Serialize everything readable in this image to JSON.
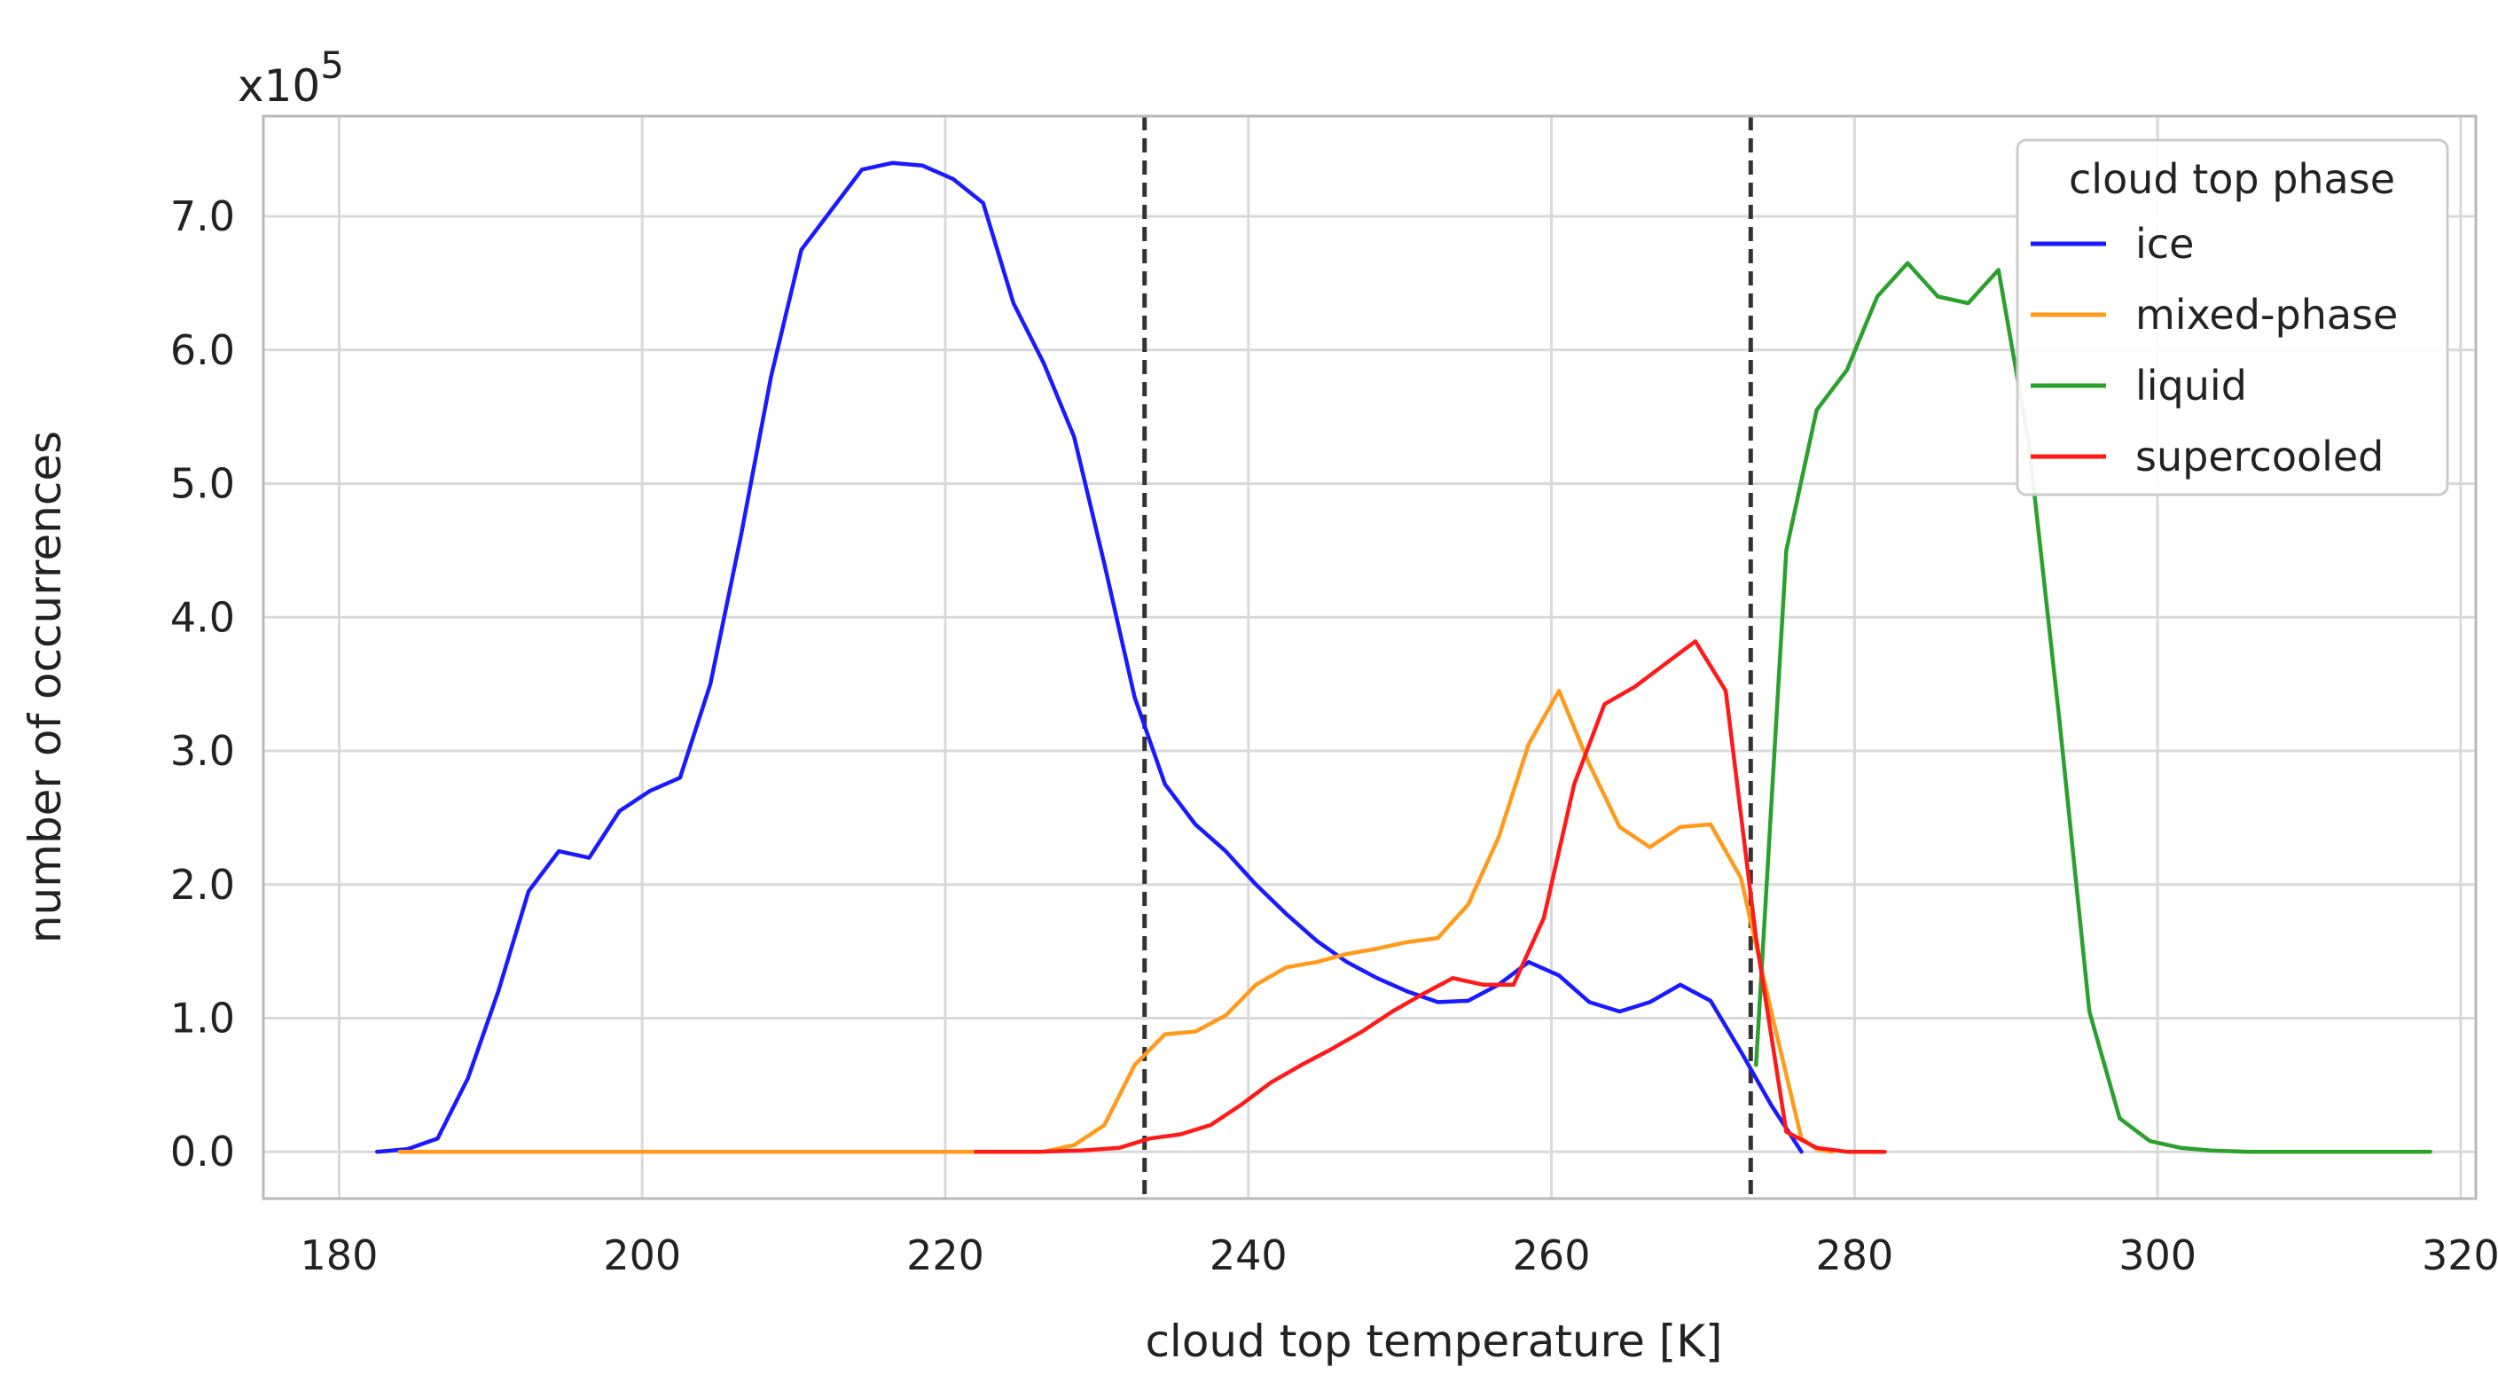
{
  "chart_data": {
    "type": "line",
    "xlabel": "cloud top temperature [K]",
    "ylabel": "number of occurrences",
    "y_multiplier_base": "x10",
    "y_multiplier_exp": "5",
    "xlim": [
      175,
      321
    ],
    "ylim": [
      -0.35,
      7.75
    ],
    "x_ticks": [
      180,
      200,
      220,
      240,
      260,
      280,
      300,
      320
    ],
    "y_ticks": [
      0.0,
      1.0,
      2.0,
      3.0,
      4.0,
      5.0,
      6.0,
      7.0
    ],
    "y_tick_labels": [
      "0.0",
      "1.0",
      "2.0",
      "3.0",
      "4.0",
      "5.0",
      "6.0",
      "7.0"
    ],
    "grid": true,
    "legend_position": "top-right",
    "legend_title": "cloud top phase",
    "vlines": [
      233.15,
      273.15
    ],
    "series": [
      {
        "name": "ice",
        "color": "#1a1aff",
        "x": [
          182.5,
          184.5,
          186.5,
          188.5,
          190.5,
          192.5,
          194.5,
          196.5,
          198.5,
          200.5,
          202.5,
          204.5,
          206.5,
          208.5,
          210.5,
          212.5,
          214.5,
          216.5,
          218.5,
          220.5,
          222.5,
          224.5,
          226.5,
          228.5,
          230.5,
          232.5,
          234.5,
          236.5,
          238.5,
          240.5,
          242.5,
          244.5,
          246.5,
          248.5,
          250.5,
          252.5,
          254.5,
          256.5,
          258.5,
          260.5,
          262.5,
          264.5,
          266.5,
          268.5,
          270.5,
          272.5,
          274.5,
          276.5
        ],
        "y": [
          0.0,
          0.02,
          0.1,
          0.55,
          1.2,
          1.95,
          2.25,
          2.2,
          2.55,
          2.7,
          2.8,
          3.5,
          4.6,
          5.8,
          6.75,
          7.05,
          7.35,
          7.4,
          7.38,
          7.28,
          7.1,
          6.35,
          5.9,
          5.35,
          4.4,
          3.4,
          2.75,
          2.45,
          2.25,
          2.0,
          1.78,
          1.58,
          1.42,
          1.3,
          1.2,
          1.12,
          1.13,
          1.25,
          1.42,
          1.32,
          1.12,
          1.05,
          1.12,
          1.25,
          1.13,
          0.75,
          0.35,
          0.0
        ]
      },
      {
        "name": "mixed-phase",
        "color": "#ff9a1a",
        "x": [
          184,
          200,
          210,
          220,
          224,
          226.5,
          228.5,
          230.5,
          232.5,
          234.5,
          236.5,
          238.5,
          240.5,
          242.5,
          244.5,
          246.5,
          248.5,
          250.5,
          252.5,
          254.5,
          256.5,
          258.5,
          260.5,
          262.5,
          264.5,
          266.5,
          268.5,
          270.5,
          272.5,
          274.5,
          276.5,
          277.5,
          278.5
        ],
        "y": [
          0.0,
          0.0,
          0.0,
          0.0,
          0.0,
          0.0,
          0.05,
          0.2,
          0.65,
          0.88,
          0.9,
          1.02,
          1.25,
          1.38,
          1.42,
          1.48,
          1.52,
          1.57,
          1.6,
          1.85,
          2.35,
          3.05,
          3.45,
          2.9,
          2.43,
          2.28,
          2.43,
          2.45,
          2.05,
          1.05,
          0.1,
          0.02,
          0.0
        ]
      },
      {
        "name": "liquid",
        "color": "#2ca02c",
        "x": [
          273.5,
          275.5,
          277.5,
          279.5,
          281.5,
          283.5,
          285.5,
          287.5,
          289.5,
          291.5,
          293.5,
          295.5,
          297.5,
          299.5,
          301.5,
          303.5,
          306,
          310,
          314,
          318
        ],
        "y": [
          0.65,
          4.5,
          5.55,
          5.85,
          6.4,
          6.65,
          6.4,
          6.35,
          6.6,
          5.3,
          3.25,
          1.05,
          0.25,
          0.08,
          0.03,
          0.01,
          0.0,
          0.0,
          0.0,
          0.0
        ]
      },
      {
        "name": "supercooled",
        "color": "#ff1a1a",
        "x": [
          222,
          226,
          229,
          231.5,
          233.5,
          235.5,
          237.5,
          239.5,
          241.5,
          243.5,
          245.5,
          247.5,
          249.5,
          251.5,
          253.5,
          255.5,
          257.5,
          259.5,
          261.5,
          263.5,
          265.5,
          267.5,
          269.5,
          271.5,
          273.5,
          275.5,
          277.5,
          279.5,
          282
        ],
        "y": [
          0.0,
          0.0,
          0.01,
          0.03,
          0.1,
          0.13,
          0.2,
          0.35,
          0.52,
          0.65,
          0.77,
          0.9,
          1.05,
          1.18,
          1.3,
          1.25,
          1.25,
          1.75,
          2.75,
          3.35,
          3.48,
          3.65,
          3.82,
          3.45,
          1.6,
          0.15,
          0.03,
          0.0,
          0.0
        ]
      }
    ]
  }
}
